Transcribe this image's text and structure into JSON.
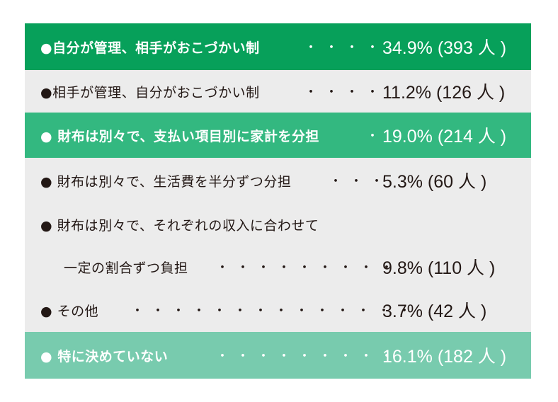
{
  "rows": [
    {
      "label": "●自分が管理、相手がおこづかい制",
      "dots": "・・・・",
      "value": "34.9% (393 人 )"
    },
    {
      "label": "●相手が管理、自分がおこづかい制",
      "dots": "・・・・",
      "value": "11.2% (126 人 )"
    },
    {
      "label": "● 財布は別々で、支払い項目別に家計を分担",
      "dots": "・",
      "value": "19.0% (214 人 )"
    },
    {
      "label": "● 財布は別々で、生活費を半分ずつ分担",
      "dots": "・・・",
      "value": "5.3% (60 人 )"
    },
    {
      "label": "●  財布は別々で、それぞれの収入に合わせて",
      "dots": "",
      "value": ""
    },
    {
      "label": "一定の割合ずつ負担",
      "dots": "・・・・・・・・・",
      "value": "9.8% (110 人 )"
    },
    {
      "label": "● その他",
      "dots": "・・・・・・・・・・・・・・",
      "value": "3.7% (42 人 )"
    },
    {
      "label": "● 特に決めていない",
      "dots": "・・・・・・・・・",
      "value": "16.1% (182 人 )"
    }
  ],
  "colors": {
    "row_dark": "#07a05a",
    "row_mid": "#33b880",
    "row_light": "#78cbae",
    "panel_gray": "#ececec",
    "text_dark": "#231815"
  }
}
